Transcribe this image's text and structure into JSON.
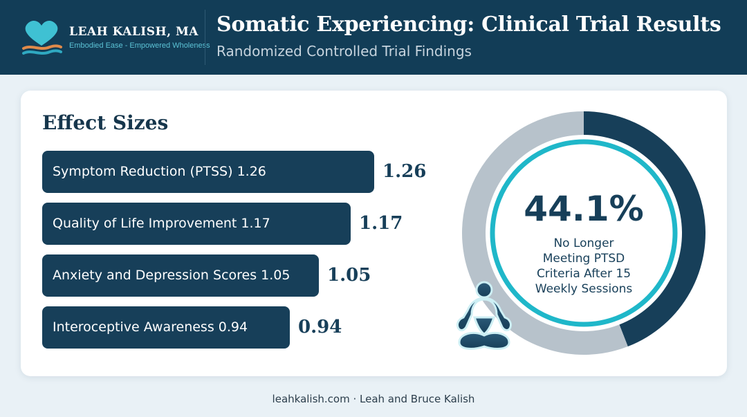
{
  "brand": {
    "name": "LEAH KALISH, MA",
    "tagline": "Embodied Ease - Empowered Wholeness"
  },
  "header": {
    "title": "Somatic Experiencing: Clinical Trial Results",
    "subtitle": "Randomized Controlled Trial Findings"
  },
  "colors": {
    "header_bg": "#123d57",
    "bar": "#173f59",
    "donut_dark": "#173f59",
    "donut_light": "#b7c2cb",
    "donut_ring": "#1fb7c9",
    "page_bg": "#e9f1f6"
  },
  "chart_data": [
    {
      "type": "bar",
      "orientation": "horizontal",
      "title": "Effect Sizes",
      "categories": [
        "Symptom Reduction (PTSS) 1.26",
        "Quality of Life Improvement 1.17",
        "Anxiety and Depression Scores 1.05",
        "Interoceptive Awareness 0.94"
      ],
      "values": [
        1.26,
        1.17,
        1.05,
        0.94
      ],
      "value_labels": [
        "1.26",
        "1.17",
        "1.05",
        "0.94"
      ]
    },
    {
      "type": "pie",
      "style": "donut",
      "percent": 44.1,
      "value_label": "44.1%",
      "caption": "No Longer Meeting PTSD Criteria After 15 Weekly Sessions"
    }
  ],
  "footer": {
    "text": "leahkalish.com · Leah and Bruce Kalish"
  },
  "icons": [
    "heart-logo-icon",
    "wave-logo-icon",
    "meditation-figure-icon"
  ]
}
